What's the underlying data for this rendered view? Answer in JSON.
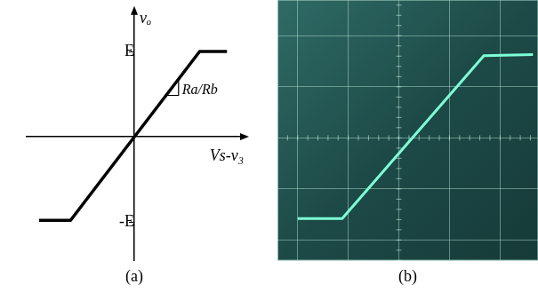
{
  "chart_data": [
    {
      "type": "line",
      "title": "(a)",
      "x_label": "Vs-v₃",
      "y_label": "vₒ",
      "annotation": "Ra/Rb",
      "x": [
        -1.15,
        -0.77,
        0.79,
        1.12
      ],
      "values": [
        -0.98,
        -0.98,
        1,
        1
      ],
      "color": "#000000",
      "xlim": [
        -1.3,
        1.3
      ],
      "ylim": [
        -1.45,
        1.45
      ],
      "xticks": [],
      "yticks": [
        {
          "value": 1,
          "label": "E"
        },
        {
          "value": -1,
          "label": "-E"
        }
      ],
      "grid": false,
      "tick_labels": "y"
    },
    {
      "type": "line",
      "title": "(b)",
      "x": [
        -2.0,
        -1.12,
        1.68,
        2.65
      ],
      "values": [
        -1.58,
        -1.58,
        1.61,
        1.63
      ],
      "color": "#7dffd6",
      "xlim": [
        -2.4,
        2.75
      ],
      "ylim": [
        -2.4,
        2.7
      ],
      "xticks": [
        -2,
        -1,
        0,
        1,
        2
      ],
      "yticks": [
        -2,
        -1,
        0,
        1,
        2
      ],
      "grid": true,
      "tick_labels": false
    }
  ]
}
